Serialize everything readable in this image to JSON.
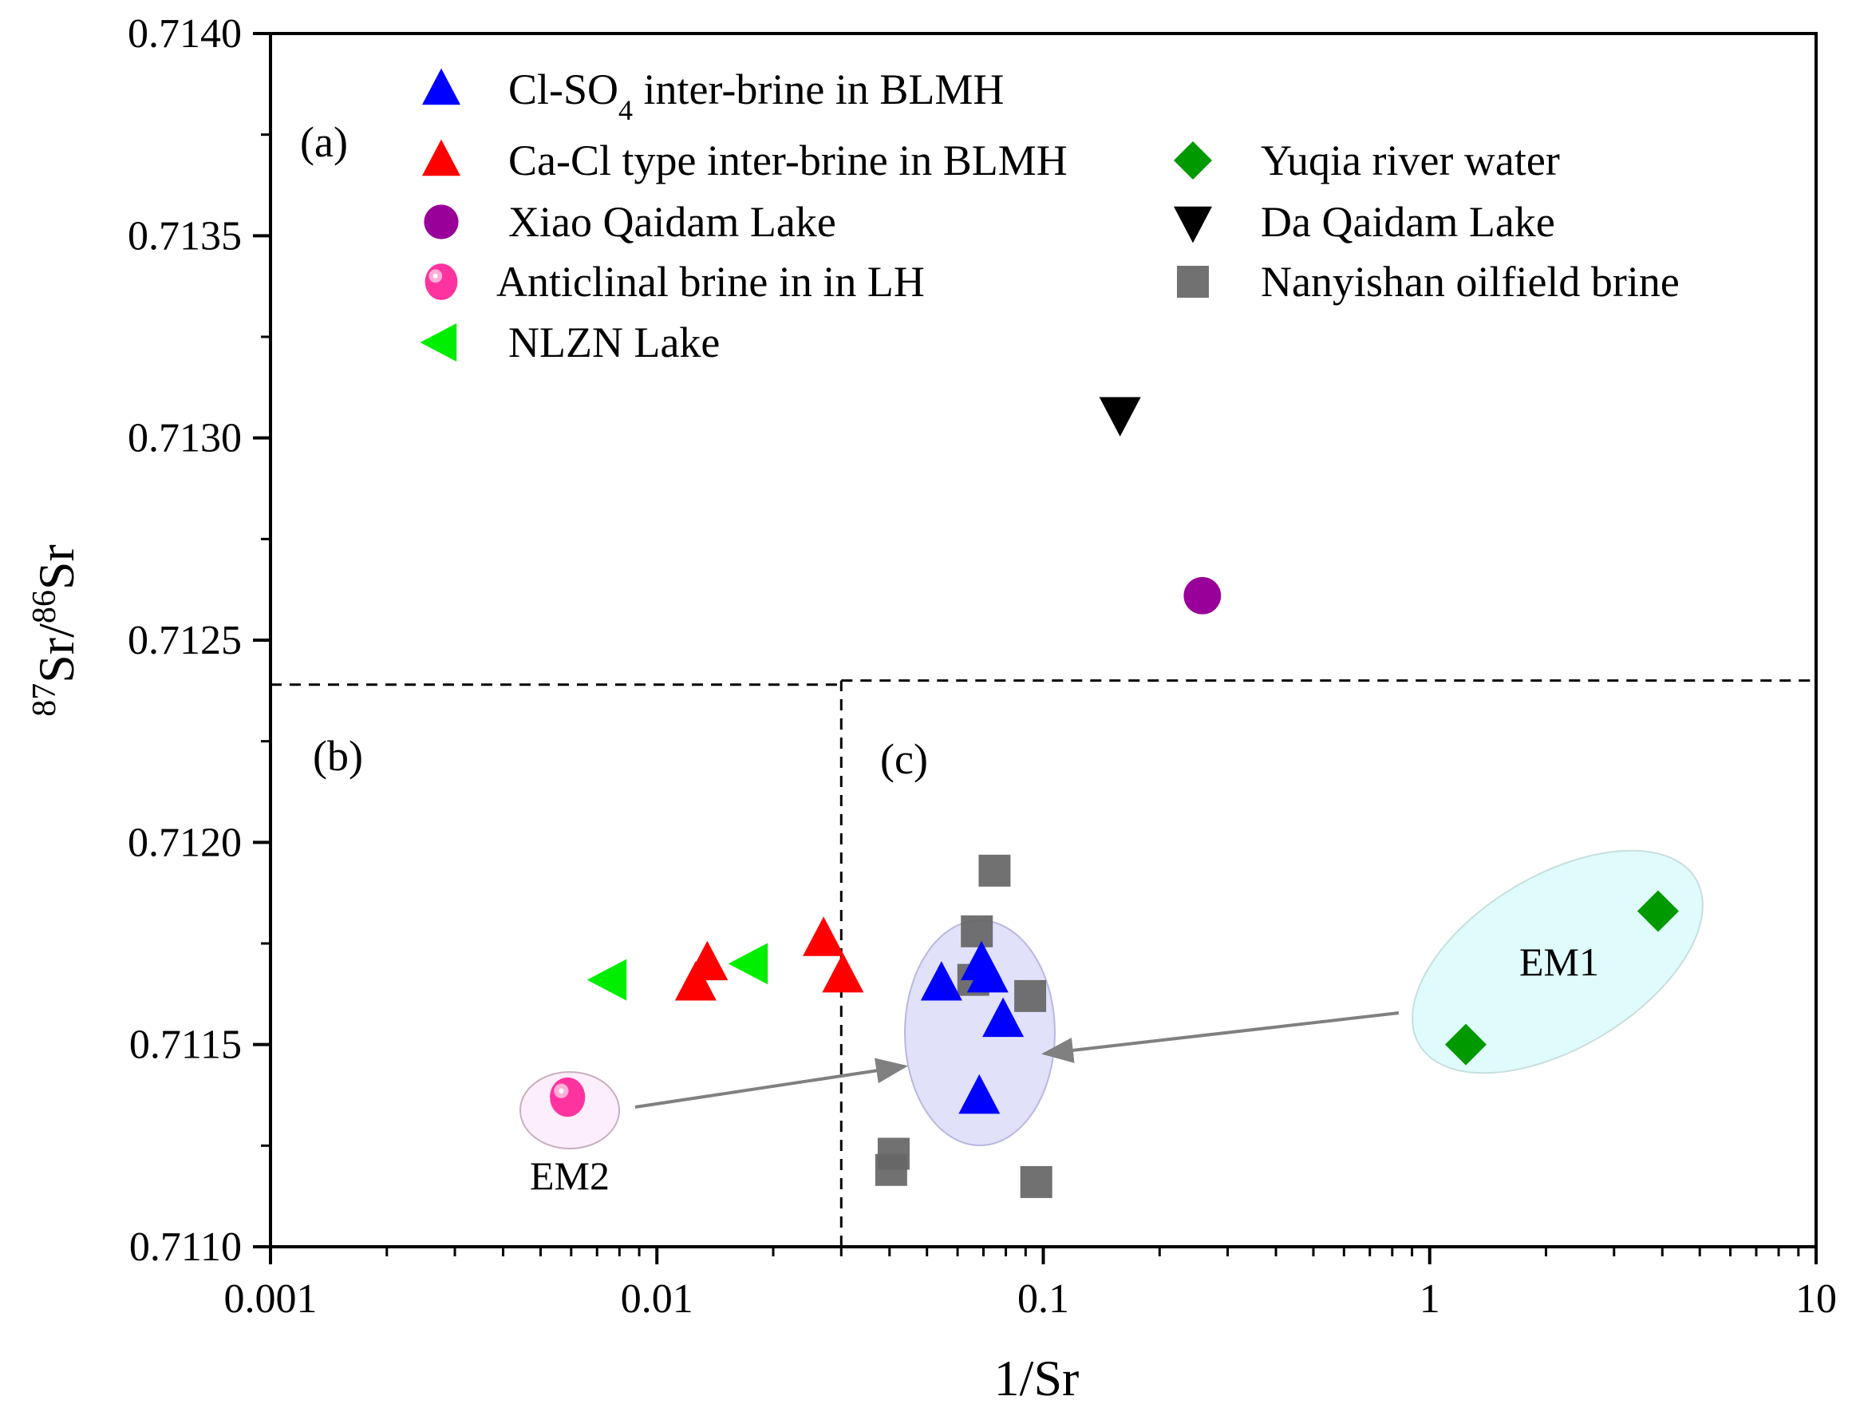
{
  "chart_data": {
    "type": "scatter",
    "xlabel": "1/Sr",
    "ylabel_parts": {
      "sup1": "87",
      "base1": "Sr/",
      "sup2": "86",
      "base2": "Sr"
    },
    "x_scale": "log",
    "xlim": [
      0.001,
      10
    ],
    "ylim": [
      0.711,
      0.714
    ],
    "x_ticks": [
      0.001,
      0.01,
      0.1,
      1,
      10
    ],
    "x_tick_labels": [
      "0.001",
      "0.01",
      "0.1",
      "1",
      "10"
    ],
    "y_ticks": [
      0.711,
      0.7115,
      0.712,
      0.7125,
      0.713,
      0.7135,
      0.714
    ],
    "y_tick_labels": [
      "0.7110",
      "0.7115",
      "0.7120",
      "0.7125",
      "0.7130",
      "0.7135",
      "0.7140"
    ],
    "grid": false,
    "legend_placement": "top",
    "series": [
      {
        "name": "Cl-SO4 inter-brine in BLMH",
        "label_parts": [
          "Cl-SO",
          "4",
          " inter-brine in BLMH"
        ],
        "marker": "triangle-up",
        "color": "#0000ff",
        "points": [
          [
            0.0545,
            0.71165
          ],
          [
            0.0692,
            0.7117
          ],
          [
            0.0718,
            0.71167
          ],
          [
            0.0787,
            0.71156
          ],
          [
            0.0683,
            0.71137
          ]
        ]
      },
      {
        "name": "Ca-Cl type inter-brine in BLMH",
        "marker": "triangle-up",
        "color": "#ff0000",
        "points": [
          [
            0.0126,
            0.71165
          ],
          [
            0.0135,
            0.7117
          ],
          [
            0.027,
            0.71176
          ],
          [
            0.0303,
            0.71167
          ]
        ]
      },
      {
        "name": "Xiao Qaidam Lake",
        "marker": "circle",
        "color": "#990099",
        "points": [
          [
            0.258,
            0.71261
          ]
        ]
      },
      {
        "name": "Anticlinal brine in in LH",
        "marker": "sphere",
        "color": "#ff33a0",
        "points": [
          [
            0.00587,
            0.71137
          ]
        ]
      },
      {
        "name": "NLZN Lake",
        "marker": "triangle-left",
        "color": "#00ee00",
        "points": [
          [
            0.00756,
            0.71166
          ],
          [
            0.01754,
            0.7117
          ]
        ]
      },
      {
        "name": "Yuqia river water",
        "marker": "diamond",
        "color": "#009900",
        "points": [
          [
            1.24,
            0.7115
          ],
          [
            3.9,
            0.71183
          ]
        ]
      },
      {
        "name": "Da Qaidam Lake",
        "marker": "triangle-down",
        "color": "#000000",
        "points": [
          [
            0.158,
            0.71306
          ]
        ]
      },
      {
        "name": "Nanyishan oilfield brine",
        "marker": "square",
        "color": "#666666",
        "points": [
          [
            0.0748,
            0.71193
          ],
          [
            0.0673,
            0.71178
          ],
          [
            0.0659,
            0.71166
          ],
          [
            0.0925,
            0.71162
          ],
          [
            0.041,
            0.71123
          ],
          [
            0.0404,
            0.71119
          ],
          [
            0.0959,
            0.71116
          ]
        ]
      }
    ],
    "reference_lines": [
      {
        "type": "horizontal",
        "y": 0.71239,
        "x_range": [
          0.001,
          0.03
        ],
        "style": "dashed"
      },
      {
        "type": "horizontal",
        "y": 0.7124,
        "x_range": [
          0.03,
          10
        ],
        "style": "dashed"
      },
      {
        "type": "vertical",
        "x": 0.03,
        "y_range": [
          0.711,
          0.7124
        ],
        "style": "dashed"
      }
    ],
    "annotations": {
      "panel_a": "(a)",
      "panel_b": "(b)",
      "panel_c": "(c)",
      "em1": "EM1",
      "em2": "EM2"
    },
    "ellipse_colors": {
      "em1": "#e0fbfb",
      "em2": "#fdeefc",
      "mix": "#c8c8f5"
    }
  }
}
